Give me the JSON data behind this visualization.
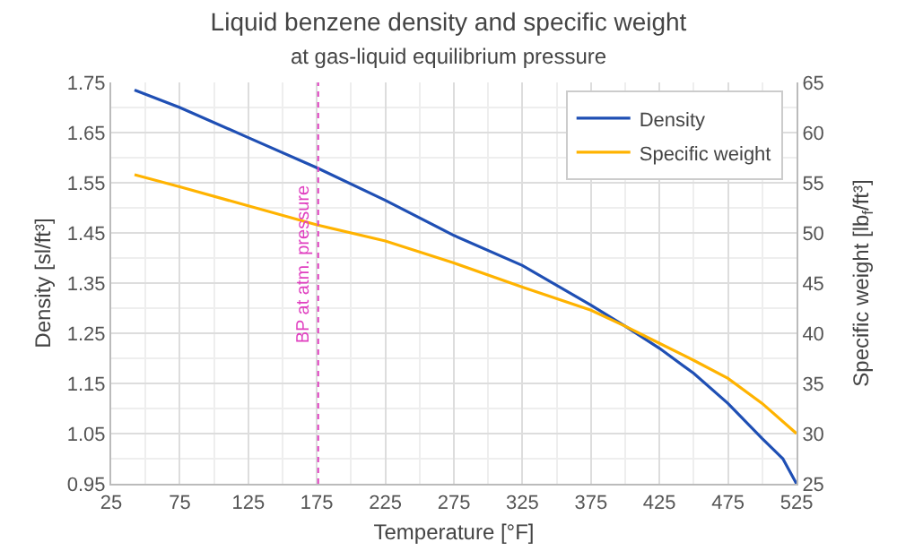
{
  "chart_data": {
    "type": "line",
    "title": "Liquid benzene density and specific weight",
    "subtitle": "at gas-liquid equilibrium pressure",
    "xlabel": "Temperature [°F]",
    "ylabel": "Density [sl/ft³]",
    "y2label": "Specific weight [lb$_{f}$/ft³]",
    "series": [
      {
        "name": "Density",
        "color": "#1f4fb4",
        "x": [
          42,
          75,
          125,
          175,
          225,
          275,
          325,
          375,
          400,
          425,
          450,
          475,
          500,
          515,
          525
        ],
        "values": [
          1.735,
          1.7,
          1.64,
          1.58,
          1.515,
          1.445,
          1.385,
          1.306,
          1.264,
          1.22,
          1.17,
          1.11,
          1.04,
          1.0,
          0.95
        ]
      },
      {
        "name": "Specific weight",
        "color": "#ffb300",
        "axis": "y2",
        "x": [
          42,
          75,
          125,
          175,
          225,
          275,
          325,
          375,
          400,
          425,
          450,
          475,
          500,
          525
        ],
        "values": [
          55.8,
          54.6,
          52.7,
          50.8,
          49.2,
          47.0,
          44.6,
          42.3,
          40.7,
          39,
          37.3,
          35.5,
          33,
          30
        ]
      }
    ],
    "xlim": [
      25,
      525
    ],
    "xticks": [
      25,
      75,
      125,
      175,
      225,
      275,
      325,
      375,
      425,
      475,
      525
    ],
    "ylim": [
      0.95,
      1.75
    ],
    "yticks": [
      {
        "value": 0.95,
        "label": "0.95"
      },
      {
        "value": 1.05,
        "label": "1.05"
      },
      {
        "value": 1.15,
        "label": "1.15"
      },
      {
        "value": 1.25,
        "label": "1.25"
      },
      {
        "value": 1.35,
        "label": "1.35"
      },
      {
        "value": 1.45,
        "label": "1.45"
      },
      {
        "value": 1.55,
        "label": "1.55"
      },
      {
        "value": 1.65,
        "label": "1.65"
      },
      {
        "value": 1.75,
        "label": "1.75"
      }
    ],
    "y2lim": [
      25,
      65
    ],
    "y2ticks": [
      25,
      30,
      35,
      40,
      45,
      50,
      55,
      60,
      65
    ],
    "ref_lines": [
      {
        "axis": "x",
        "value": 176,
        "label": "BP at atm. pressure",
        "color": "#e040c0",
        "line_style": "dotted"
      }
    ],
    "grid": true,
    "legend": "top right"
  }
}
